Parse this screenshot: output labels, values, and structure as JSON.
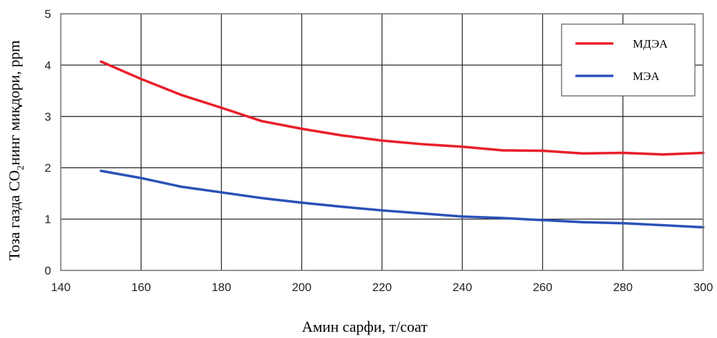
{
  "chart_data": {
    "type": "line",
    "xlabel": "Амин сарфи, т/соат",
    "ylabel_main": "Тоза газда CO",
    "ylabel_sub": "2",
    "ylabel_rest": "нинг миқдори, ppm",
    "xlim": [
      140,
      300
    ],
    "ylim": [
      0,
      5
    ],
    "xticks": [
      140,
      160,
      180,
      200,
      220,
      240,
      260,
      280,
      300
    ],
    "yticks": [
      0,
      1,
      2,
      3,
      4,
      5
    ],
    "grid": true,
    "legend_position": "top-right",
    "series": [
      {
        "name": "МДЭА",
        "color": "#e8202a",
        "x": [
          150,
          160,
          170,
          180,
          190,
          200,
          210,
          220,
          230,
          240,
          250,
          260,
          270,
          280,
          290,
          300
        ],
        "y": [
          4.07,
          3.73,
          3.42,
          3.17,
          2.91,
          2.76,
          2.63,
          2.53,
          2.46,
          2.41,
          2.34,
          2.33,
          2.28,
          2.29,
          2.26,
          2.29
        ]
      },
      {
        "name": "МЭА",
        "color": "#2a52b8",
        "x": [
          150,
          160,
          170,
          180,
          190,
          200,
          210,
          220,
          230,
          240,
          250,
          260,
          270,
          280,
          290,
          300
        ],
        "y": [
          1.94,
          1.8,
          1.63,
          1.52,
          1.41,
          1.32,
          1.24,
          1.17,
          1.11,
          1.05,
          1.02,
          0.98,
          0.94,
          0.92,
          0.88,
          0.84
        ]
      }
    ]
  }
}
